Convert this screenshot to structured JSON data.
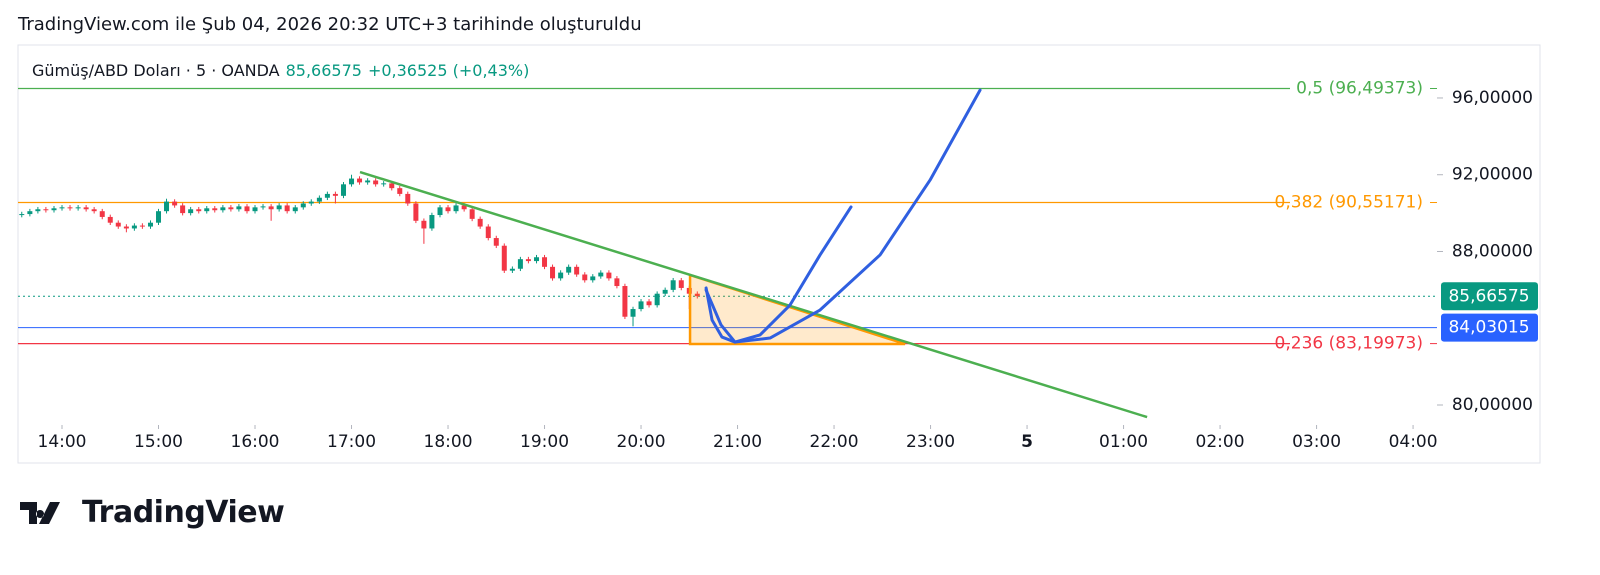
{
  "header": {
    "title": "TradingView.com ile Şub 04, 2026 20:32 UTC+3 tarihinde oluşturuldu"
  },
  "chart_data": {
    "type": "candlestick",
    "symbol": "Gümüş/ABD Doları · 5 · OANDA",
    "price": "85,66575",
    "change": "+0,36525 (+0,43%)",
    "up_color": "#089981",
    "down_color": "#f23645",
    "x": [
      13.583,
      13.667,
      13.75,
      13.833,
      13.917,
      14.0,
      14.083,
      14.167,
      14.25,
      14.333,
      14.417,
      14.5,
      14.583,
      14.667,
      14.75,
      14.833,
      14.917,
      15.0,
      15.083,
      15.167,
      15.25,
      15.333,
      15.417,
      15.5,
      15.583,
      15.667,
      15.75,
      15.833,
      15.917,
      16.0,
      16.083,
      16.167,
      16.25,
      16.333,
      16.417,
      16.5,
      16.583,
      16.667,
      16.75,
      16.833,
      16.917,
      17.0,
      17.083,
      17.167,
      17.25,
      17.333,
      17.417,
      17.5,
      17.583,
      17.667,
      17.75,
      17.833,
      17.917,
      18.0,
      18.083,
      18.167,
      18.25,
      18.333,
      18.417,
      18.5,
      18.583,
      18.667,
      18.75,
      18.833,
      18.917,
      19.0,
      19.083,
      19.167,
      19.25,
      19.333,
      19.417,
      19.5,
      19.583,
      19.667,
      19.75,
      19.833,
      19.917,
      20.0,
      20.083,
      20.167,
      20.25,
      20.333,
      20.417,
      20.5,
      20.583
    ],
    "open": [
      89.9,
      89.95,
      90.1,
      90.2,
      90.15,
      90.25,
      90.3,
      90.25,
      90.3,
      90.2,
      90.1,
      89.8,
      89.5,
      89.3,
      89.2,
      89.35,
      89.3,
      89.5,
      90.1,
      90.6,
      90.4,
      90.0,
      90.2,
      90.1,
      90.25,
      90.15,
      90.3,
      90.2,
      90.35,
      90.1,
      90.3,
      90.35,
      90.2,
      90.4,
      90.1,
      90.3,
      90.5,
      90.6,
      90.8,
      91.0,
      90.9,
      91.5,
      91.8,
      91.6,
      91.7,
      91.5,
      91.55,
      91.3,
      91.0,
      90.5,
      89.6,
      89.2,
      89.9,
      90.3,
      90.1,
      90.4,
      90.2,
      89.7,
      89.3,
      88.7,
      88.3,
      87.0,
      87.1,
      87.6,
      87.5,
      87.7,
      87.2,
      86.6,
      86.9,
      87.2,
      86.8,
      86.5,
      86.7,
      86.9,
      86.6,
      86.2,
      84.6,
      85.0,
      85.4,
      85.2,
      85.8,
      86.0,
      86.5,
      86.1,
      85.8
    ],
    "high": [
      90.07,
      90.22,
      90.32,
      90.32,
      90.37,
      90.42,
      90.42,
      90.42,
      90.42,
      90.32,
      90.22,
      89.92,
      89.62,
      89.42,
      89.47,
      89.47,
      89.62,
      90.22,
      90.75,
      90.72,
      90.52,
      90.32,
      90.32,
      90.37,
      90.37,
      90.42,
      90.42,
      90.47,
      90.47,
      90.42,
      90.47,
      90.47,
      90.52,
      90.52,
      90.42,
      90.62,
      90.72,
      90.92,
      91.12,
      91.12,
      91.62,
      92.0,
      91.92,
      91.82,
      91.82,
      91.67,
      91.67,
      91.42,
      91.12,
      90.62,
      89.72,
      90.02,
      90.42,
      90.42,
      90.52,
      90.52,
      90.32,
      89.82,
      89.42,
      88.82,
      88.42,
      87.22,
      87.72,
      87.72,
      87.82,
      87.82,
      87.32,
      87.02,
      87.32,
      87.32,
      86.92,
      86.82,
      87.02,
      87.02,
      86.72,
      86.32,
      85.12,
      85.52,
      85.52,
      85.92,
      86.12,
      86.62,
      86.62,
      86.22,
      85.92
    ],
    "low": [
      89.78,
      89.83,
      89.98,
      90.03,
      90.03,
      90.13,
      90.13,
      90.13,
      90.08,
      89.98,
      89.68,
      89.38,
      89.18,
      89.0,
      89.08,
      89.18,
      89.18,
      89.38,
      89.98,
      90.28,
      89.88,
      89.88,
      89.98,
      89.98,
      90.03,
      90.03,
      90.08,
      90.08,
      89.98,
      89.98,
      90.18,
      89.6,
      90.08,
      89.98,
      89.98,
      90.18,
      90.38,
      90.48,
      90.68,
      90.5,
      90.78,
      91.38,
      91.48,
      91.48,
      91.38,
      91.38,
      91.18,
      90.88,
      90.38,
      89.48,
      88.4,
      89.08,
      89.78,
      89.98,
      89.98,
      90.08,
      89.58,
      89.18,
      88.58,
      88.18,
      86.88,
      86.88,
      86.98,
      87.38,
      87.38,
      87.08,
      86.48,
      86.48,
      86.78,
      86.68,
      86.38,
      86.38,
      86.58,
      86.48,
      86.08,
      84.48,
      84.1,
      84.88,
      85.08,
      85.08,
      85.68,
      85.88,
      85.98,
      85.0,
      85.55
    ],
    "close": [
      89.95,
      90.1,
      90.2,
      90.15,
      90.25,
      90.3,
      90.25,
      90.3,
      90.2,
      90.1,
      89.8,
      89.5,
      89.3,
      89.2,
      89.35,
      89.3,
      89.5,
      90.1,
      90.6,
      90.4,
      90.0,
      90.2,
      90.1,
      90.25,
      90.15,
      90.3,
      90.2,
      90.35,
      90.1,
      90.3,
      90.35,
      90.2,
      90.4,
      90.1,
      90.3,
      90.5,
      90.6,
      90.8,
      91.0,
      90.9,
      91.5,
      91.8,
      91.6,
      91.7,
      91.5,
      91.55,
      91.3,
      91.0,
      90.5,
      89.6,
      89.2,
      89.9,
      90.3,
      90.1,
      90.4,
      90.2,
      89.7,
      89.3,
      88.7,
      88.3,
      87.0,
      87.1,
      87.6,
      87.5,
      87.7,
      87.2,
      86.6,
      86.9,
      87.2,
      86.8,
      86.5,
      86.7,
      86.9,
      86.6,
      86.2,
      84.6,
      85.0,
      85.4,
      85.2,
      85.8,
      86.0,
      86.5,
      86.1,
      85.8,
      85.67
    ],
    "xlim": [
      13.544,
      28.248
    ],
    "ylim": [
      78.958,
      98.76
    ],
    "xticks": [
      {
        "value": 14,
        "label": "14:00"
      },
      {
        "value": 15,
        "label": "15:00"
      },
      {
        "value": 16,
        "label": "16:00"
      },
      {
        "value": 17,
        "label": "17:00"
      },
      {
        "value": 18,
        "label": "18:00"
      },
      {
        "value": 19,
        "label": "19:00"
      },
      {
        "value": 20,
        "label": "20:00"
      },
      {
        "value": 21,
        "label": "21:00"
      },
      {
        "value": 22,
        "label": "22:00"
      },
      {
        "value": 23,
        "label": "23:00"
      },
      {
        "value": 24,
        "label": "5"
      },
      {
        "value": 25,
        "label": "01:00"
      },
      {
        "value": 26,
        "label": "02:00"
      },
      {
        "value": 27,
        "label": "03:00"
      },
      {
        "value": 28,
        "label": "04:00"
      }
    ],
    "yticks": [
      {
        "value": 96,
        "label": "96,00000"
      },
      {
        "value": 92,
        "label": "92,00000"
      },
      {
        "value": 88,
        "label": "88,00000"
      },
      {
        "value": 80,
        "label": "80,00000"
      }
    ],
    "levels": [
      {
        "label": "0,5 (96,49373)",
        "value": 96.49373,
        "color": "#4caf50"
      },
      {
        "label": "0,382 (90,55171)",
        "value": 90.55171,
        "color": "#ff9800"
      },
      {
        "label": "0,236 (83,19973)",
        "value": 83.19973,
        "color": "#f23645"
      }
    ],
    "price_lines": [
      {
        "value": 85.66575,
        "label": "85,66575",
        "color": "#089981",
        "dotted": true
      },
      {
        "value": 84.03015,
        "label": "84,03015",
        "color": "#2962ff",
        "dotted": false
      }
    ],
    "trendline": {
      "x": [
        17.088,
        25.244
      ],
      "y": [
        92.14,
        79.37
      ],
      "color": "#4caf50"
    },
    "triangle": {
      "x": [
        20.508,
        20.508,
        22.736
      ],
      "y": [
        86.77,
        83.18,
        83.18
      ],
      "color": "#ff9800"
    },
    "curves": [
      {
        "x": [
          20.674,
          20.736,
          20.839,
          20.974,
          21.233,
          21.544,
          21.855,
          22.176
        ],
        "y": [
          86.1,
          84.43,
          83.54,
          83.28,
          83.65,
          85.21,
          87.82,
          90.32
        ],
        "color": "#2f5fe0"
      },
      {
        "x": [
          20.674,
          20.829,
          20.974,
          21.337,
          21.855,
          22.477,
          22.995,
          23.513
        ],
        "y": [
          85.99,
          84.17,
          83.28,
          83.49,
          84.95,
          87.82,
          91.72,
          96.41
        ],
        "color": "#2f5fe0"
      }
    ]
  },
  "footer": {
    "logo": "TradingView"
  }
}
